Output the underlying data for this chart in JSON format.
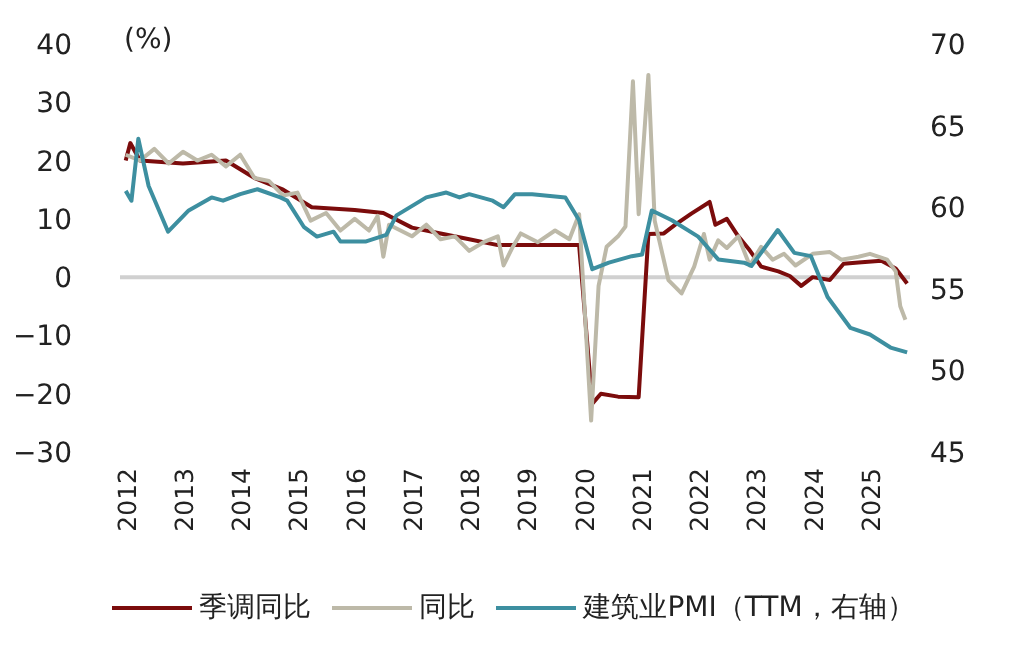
{
  "chart_data": {
    "type": "line",
    "ylabel": "(%)",
    "xlim": [
      2011.9,
      2025.7
    ],
    "xticks": [
      2012,
      2013,
      2014,
      2015,
      2016,
      2017,
      2018,
      2019,
      2020,
      2021,
      2022,
      2023,
      2024,
      2025
    ],
    "ylim": [
      -30,
      40
    ],
    "yticks": [
      {
        "value": -30,
        "label": "−30"
      },
      {
        "value": -20,
        "label": "−20"
      },
      {
        "value": -10,
        "label": "−10"
      },
      0,
      10,
      20,
      30,
      40
    ],
    "y2lim": [
      45,
      70
    ],
    "y2ticks": [
      45,
      50,
      55,
      60,
      65,
      70
    ],
    "legend": "bottom",
    "line_style": "solid",
    "ref_lines": [
      {
        "axis": "y",
        "value": 0,
        "color": "#d0d0d0"
      }
    ],
    "series": [
      {
        "name": "季调同比",
        "color": "#7b0c0c",
        "x": [
          2012,
          2012.08,
          2012.25,
          2013,
          2013.75,
          2014.25,
          2014.75,
          2015.25,
          2016,
          2016.5,
          2017,
          2017.5,
          2018,
          2018.5,
          2019,
          2019.92,
          2020.15,
          2020.3,
          2020.6,
          2020.96,
          2021.13,
          2021.4,
          2021.6,
          2021.88,
          2022.2,
          2022.3,
          2022.5,
          2022.7,
          2022.9,
          2023.1,
          2023.4,
          2023.6,
          2023.8,
          2024,
          2024.3,
          2024.54,
          2024.8,
          2025.2,
          2025.45,
          2025.65
        ],
        "values": [
          20,
          23,
          20,
          19.5,
          20,
          17,
          15,
          12,
          11.5,
          11,
          8.5,
          7.5,
          6.5,
          5.5,
          5.5,
          5.5,
          -21.7,
          -20,
          -20.5,
          -20.6,
          7.4,
          7.5,
          9,
          10.9,
          12.9,
          9,
          10,
          7,
          4.6,
          1.8,
          1,
          0.2,
          -1.5,
          0,
          -0.5,
          2.3,
          2.5,
          2.8,
          1.5,
          -1.1
        ]
      },
      {
        "name": "同比",
        "color": "#bdb9a8",
        "x": [
          2012,
          2012.25,
          2012.5,
          2012.75,
          2013,
          2013.25,
          2013.5,
          2013.75,
          2014,
          2014.25,
          2014.5,
          2014.75,
          2015,
          2015.23,
          2015.5,
          2015.75,
          2016,
          2016.25,
          2016.4,
          2016.5,
          2016.6,
          2017,
          2017.25,
          2017.5,
          2017.75,
          2018,
          2018.25,
          2018.5,
          2018.6,
          2018.75,
          2018.9,
          2019.2,
          2019.5,
          2019.75,
          2019.92,
          2020.13,
          2020.26,
          2020.4,
          2020.6,
          2020.73,
          2020.86,
          2020.96,
          2021.13,
          2021.24,
          2021.48,
          2021.71,
          2021.93,
          2022.1,
          2022.2,
          2022.35,
          2022.5,
          2022.7,
          2022.9,
          2023.1,
          2023.3,
          2023.5,
          2023.7,
          2024,
          2024.3,
          2024.5,
          2024.8,
          2025,
          2025.3,
          2025.45,
          2025.53,
          2025.62
        ],
        "values": [
          21,
          20,
          22,
          19.5,
          21.5,
          20,
          21,
          19,
          21,
          17,
          16.5,
          14,
          14.5,
          9.7,
          11,
          8,
          10,
          8,
          10.5,
          3.5,
          9,
          7,
          9,
          6.5,
          7,
          4.5,
          6,
          7,
          2,
          5,
          7.5,
          6,
          8,
          6.5,
          10.8,
          -24.6,
          -1.5,
          5.2,
          7,
          8.7,
          33.6,
          10.8,
          34.7,
          9.7,
          -0.5,
          -2.8,
          1.8,
          7.4,
          3,
          6.3,
          5,
          7,
          2,
          5.2,
          3,
          4,
          2,
          4,
          4.3,
          3,
          3.5,
          4,
          3,
          1,
          -5,
          -7.3
        ]
      },
      {
        "name": "建筑业PMI（TTM，右轴）",
        "color": "#3d8fa0",
        "axis": "y2",
        "x": [
          2012,
          2012.1,
          2012.22,
          2012.4,
          2012.74,
          2013.1,
          2013.5,
          2013.7,
          2014,
          2014.3,
          2014.7,
          2014.82,
          2015.11,
          2015.34,
          2015.63,
          2015.75,
          2016.2,
          2016.55,
          2016.73,
          2017.25,
          2017.6,
          2017.83,
          2018,
          2018.41,
          2018.6,
          2018.8,
          2019.1,
          2019.68,
          2019.92,
          2020.15,
          2020.44,
          2020.84,
          2021.02,
          2021.19,
          2021.54,
          2022,
          2022.35,
          2022.8,
          2022.93,
          2023.39,
          2023.68,
          2023.97,
          2024.26,
          2024.66,
          2025,
          2025.36,
          2025.65
        ],
        "values": [
          61,
          60.4,
          64.2,
          61.3,
          58.5,
          59.8,
          60.6,
          60.4,
          60.8,
          61.1,
          60.6,
          60.4,
          58.8,
          58.2,
          58.5,
          57.9,
          57.9,
          58.3,
          59.5,
          60.6,
          60.9,
          60.6,
          60.8,
          60.4,
          60,
          60.8,
          60.8,
          60.6,
          59.2,
          56.2,
          56.6,
          57,
          57.1,
          59.8,
          59.2,
          58.2,
          56.8,
          56.6,
          56.4,
          58.6,
          57.2,
          57,
          54.5,
          52.6,
          52.2,
          51.4,
          51.1
        ]
      }
    ]
  }
}
